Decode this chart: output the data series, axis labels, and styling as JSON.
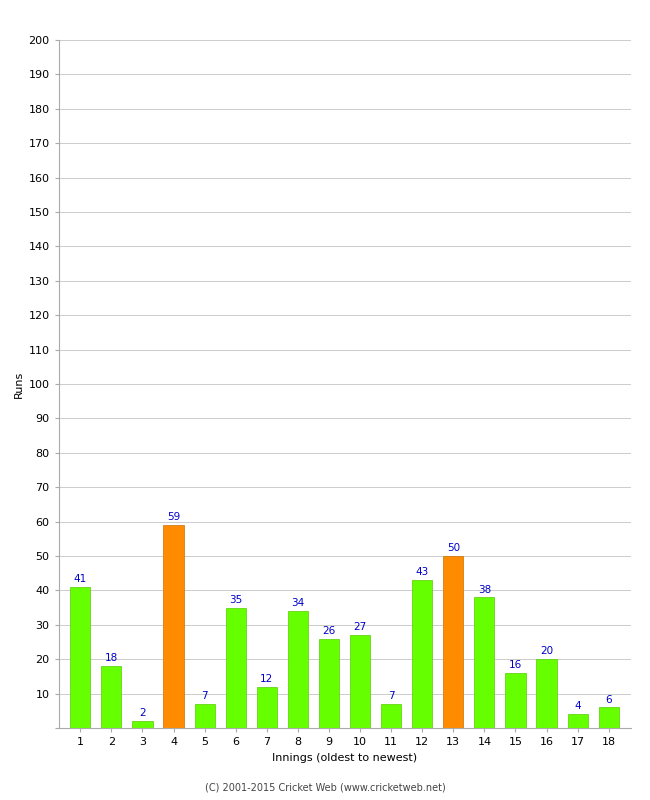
{
  "xlabel": "Innings (oldest to newest)",
  "ylabel": "Runs",
  "categories": [
    1,
    2,
    3,
    4,
    5,
    6,
    7,
    8,
    9,
    10,
    11,
    12,
    13,
    14,
    15,
    16,
    17,
    18
  ],
  "values": [
    41,
    18,
    2,
    59,
    7,
    35,
    12,
    34,
    26,
    27,
    7,
    43,
    50,
    38,
    16,
    20,
    4,
    6
  ],
  "bar_colors": [
    "#66ff00",
    "#66ff00",
    "#66ff00",
    "#ff8c00",
    "#66ff00",
    "#66ff00",
    "#66ff00",
    "#66ff00",
    "#66ff00",
    "#66ff00",
    "#66ff00",
    "#66ff00",
    "#ff8c00",
    "#66ff00",
    "#66ff00",
    "#66ff00",
    "#66ff00",
    "#66ff00"
  ],
  "ylim": [
    0,
    200
  ],
  "yticks": [
    0,
    10,
    20,
    30,
    40,
    50,
    60,
    70,
    80,
    90,
    100,
    110,
    120,
    130,
    140,
    150,
    160,
    170,
    180,
    190,
    200
  ],
  "label_color": "#0000cc",
  "label_fontsize": 7.5,
  "axis_tick_fontsize": 8,
  "axis_label_fontsize": 8,
  "background_color": "#ffffff",
  "grid_color": "#cccccc",
  "footer": "(C) 2001-2015 Cricket Web (www.cricketweb.net)",
  "footer_fontsize": 7,
  "bar_width": 0.65,
  "spine_color": "#aaaaaa"
}
